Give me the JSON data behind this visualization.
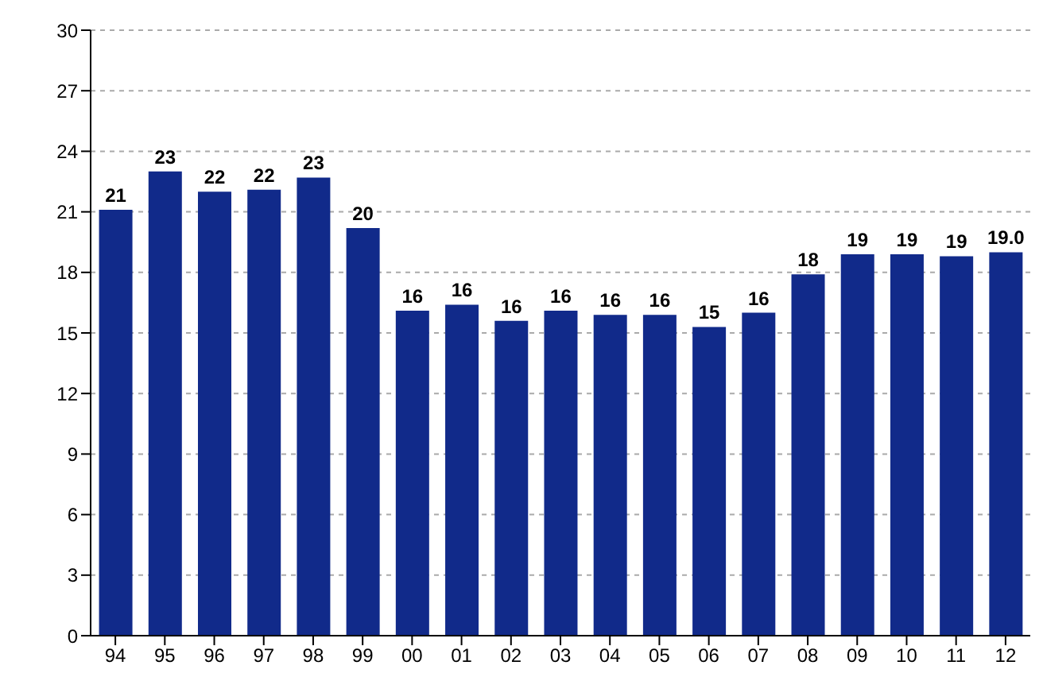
{
  "chart_data": {
    "type": "bar",
    "categories": [
      "94",
      "95",
      "96",
      "97",
      "98",
      "99",
      "00",
      "01",
      "02",
      "03",
      "04",
      "05",
      "06",
      "07",
      "08",
      "09",
      "10",
      "11",
      "12"
    ],
    "values": [
      21.1,
      23.0,
      22.0,
      22.1,
      22.7,
      20.2,
      16.1,
      16.4,
      15.6,
      16.1,
      15.9,
      15.9,
      15.3,
      16.0,
      17.9,
      18.9,
      18.9,
      18.8,
      19.0
    ],
    "value_labels": [
      "21",
      "23",
      "22",
      "22",
      "23",
      "20",
      "16",
      "16",
      "16",
      "16",
      "16",
      "16",
      "15",
      "16",
      "18",
      "19",
      "19",
      "19",
      "19.0"
    ],
    "color": "#112a8a",
    "ylim": [
      0,
      30
    ],
    "yticks": [
      0,
      3,
      6,
      9,
      12,
      15,
      18,
      21,
      24,
      27,
      30
    ],
    "grid": "y"
  }
}
